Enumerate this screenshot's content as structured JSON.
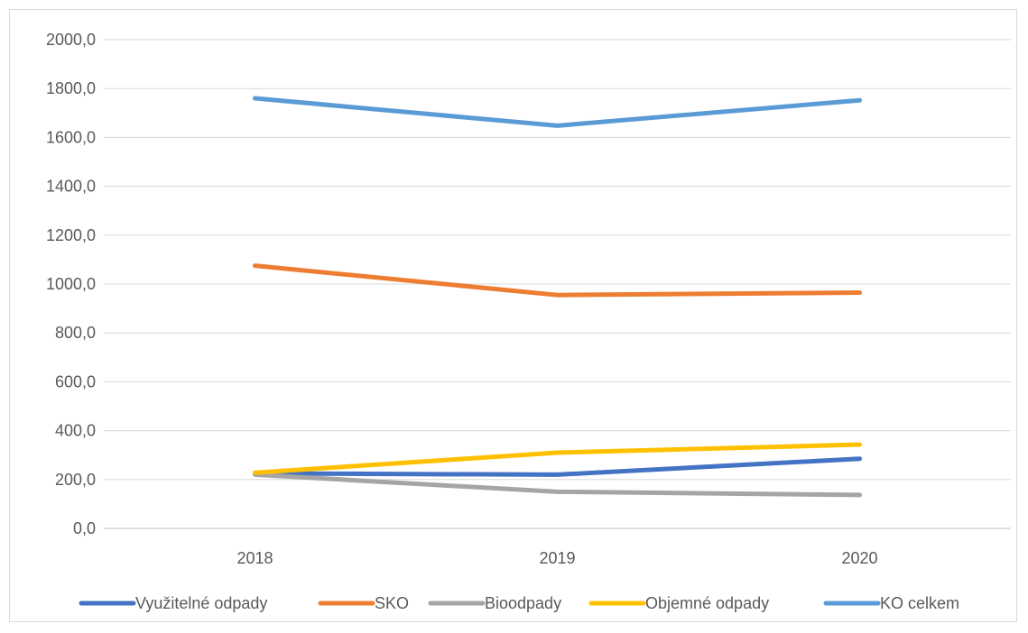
{
  "chart_data": {
    "type": "line",
    "categories": [
      "2018",
      "2019",
      "2020"
    ],
    "ylim": [
      0,
      2000
    ],
    "y_ticks": [
      "0,0",
      "200,0",
      "400,0",
      "600,0",
      "800,0",
      "1000,0",
      "1200,0",
      "1400,0",
      "1600,0",
      "1800,0",
      "2000,0"
    ],
    "grid": true,
    "legend_position": "bottom",
    "series": [
      {
        "name": "Využitelné odpady",
        "color": "#4472C4",
        "values": [
          225,
          220,
          285
        ]
      },
      {
        "name": "SKO",
        "color": "#ED7D31",
        "values": [
          1075,
          955,
          965
        ]
      },
      {
        "name": "Bioodpady",
        "color": "#A5A5A5",
        "values": [
          220,
          150,
          137
        ]
      },
      {
        "name": "Objemné odpady",
        "color": "#FFC000",
        "values": [
          228,
          310,
          343
        ]
      },
      {
        "name": "KO celkem",
        "color": "#5B9BD5",
        "values": [
          1760,
          1648,
          1752
        ]
      }
    ]
  }
}
